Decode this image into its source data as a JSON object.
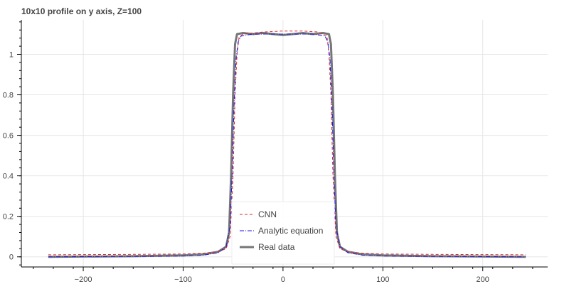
{
  "chart_data": {
    "type": "line",
    "title": "10x10 profile on y axis, Z=100",
    "xlabel": "",
    "ylabel": "",
    "xlim": [
      -262,
      265
    ],
    "ylim": [
      -0.05,
      1.17
    ],
    "xticks": [
      -200,
      -100,
      0,
      100,
      200
    ],
    "xtick_labels": [
      "−200",
      "−100",
      "0",
      "100",
      "200"
    ],
    "yticks": [
      0,
      0.2,
      0.4,
      0.6,
      0.8,
      1.0
    ],
    "ytick_labels": [
      "0",
      "0.2",
      "0.4",
      "0.6",
      "0.8",
      "1"
    ],
    "grid": true,
    "legend_position": "bottom-center",
    "series": [
      {
        "name": "CNN",
        "color": "#d62728",
        "dash": "dashed",
        "points": [
          [
            -235,
            0.01
          ],
          [
            -150,
            0.012
          ],
          [
            -100,
            0.014
          ],
          [
            -80,
            0.018
          ],
          [
            -65,
            0.025
          ],
          [
            -57,
            0.04
          ],
          [
            -53,
            0.1
          ],
          [
            -50,
            0.4
          ],
          [
            -48,
            0.8
          ],
          [
            -46,
            1.0
          ],
          [
            -44,
            1.085
          ],
          [
            -40,
            1.1
          ],
          [
            -20,
            1.11
          ],
          [
            0,
            1.115
          ],
          [
            20,
            1.115
          ],
          [
            35,
            1.11
          ],
          [
            44,
            1.09
          ],
          [
            46,
            1.0
          ],
          [
            48,
            0.8
          ],
          [
            50,
            0.4
          ],
          [
            53,
            0.1
          ],
          [
            57,
            0.04
          ],
          [
            65,
            0.025
          ],
          [
            80,
            0.018
          ],
          [
            100,
            0.014
          ],
          [
            150,
            0.012
          ],
          [
            243,
            0.01
          ]
        ]
      },
      {
        "name": "Analytic equation",
        "color": "#1a1ae6",
        "dash": "dashdot",
        "points": [
          [
            -235,
            0.0
          ],
          [
            -150,
            0.002
          ],
          [
            -100,
            0.004
          ],
          [
            -80,
            0.008
          ],
          [
            -65,
            0.02
          ],
          [
            -57,
            0.05
          ],
          [
            -53,
            0.15
          ],
          [
            -51,
            0.4
          ],
          [
            -49,
            0.75
          ],
          [
            -47,
            0.98
          ],
          [
            -45,
            1.06
          ],
          [
            -42,
            1.09
          ],
          [
            -30,
            1.1
          ],
          [
            -10,
            1.1
          ],
          [
            0,
            1.1
          ],
          [
            10,
            1.1
          ],
          [
            30,
            1.1
          ],
          [
            42,
            1.09
          ],
          [
            45,
            1.06
          ],
          [
            47,
            0.98
          ],
          [
            49,
            0.75
          ],
          [
            51,
            0.4
          ],
          [
            53,
            0.15
          ],
          [
            57,
            0.05
          ],
          [
            65,
            0.02
          ],
          [
            80,
            0.008
          ],
          [
            100,
            0.004
          ],
          [
            150,
            0.002
          ],
          [
            243,
            0.0
          ]
        ]
      },
      {
        "name": "Real data",
        "color": "#767676",
        "dash": "solid",
        "points": [
          [
            -235,
            0.0
          ],
          [
            -150,
            0.003
          ],
          [
            -100,
            0.007
          ],
          [
            -80,
            0.012
          ],
          [
            -65,
            0.025
          ],
          [
            -57,
            0.05
          ],
          [
            -54,
            0.12
          ],
          [
            -52,
            0.4
          ],
          [
            -50,
            0.8
          ],
          [
            -48,
            1.05
          ],
          [
            -46,
            1.1
          ],
          [
            -40,
            1.105
          ],
          [
            -30,
            1.1
          ],
          [
            -20,
            1.105
          ],
          [
            -10,
            1.1
          ],
          [
            0,
            1.095
          ],
          [
            10,
            1.1
          ],
          [
            20,
            1.105
          ],
          [
            30,
            1.1
          ],
          [
            40,
            1.105
          ],
          [
            46,
            1.1
          ],
          [
            48,
            1.05
          ],
          [
            50,
            0.8
          ],
          [
            52,
            0.4
          ],
          [
            54,
            0.12
          ],
          [
            57,
            0.05
          ],
          [
            65,
            0.025
          ],
          [
            80,
            0.012
          ],
          [
            100,
            0.007
          ],
          [
            150,
            0.003
          ],
          [
            243,
            0.0
          ]
        ]
      }
    ]
  }
}
